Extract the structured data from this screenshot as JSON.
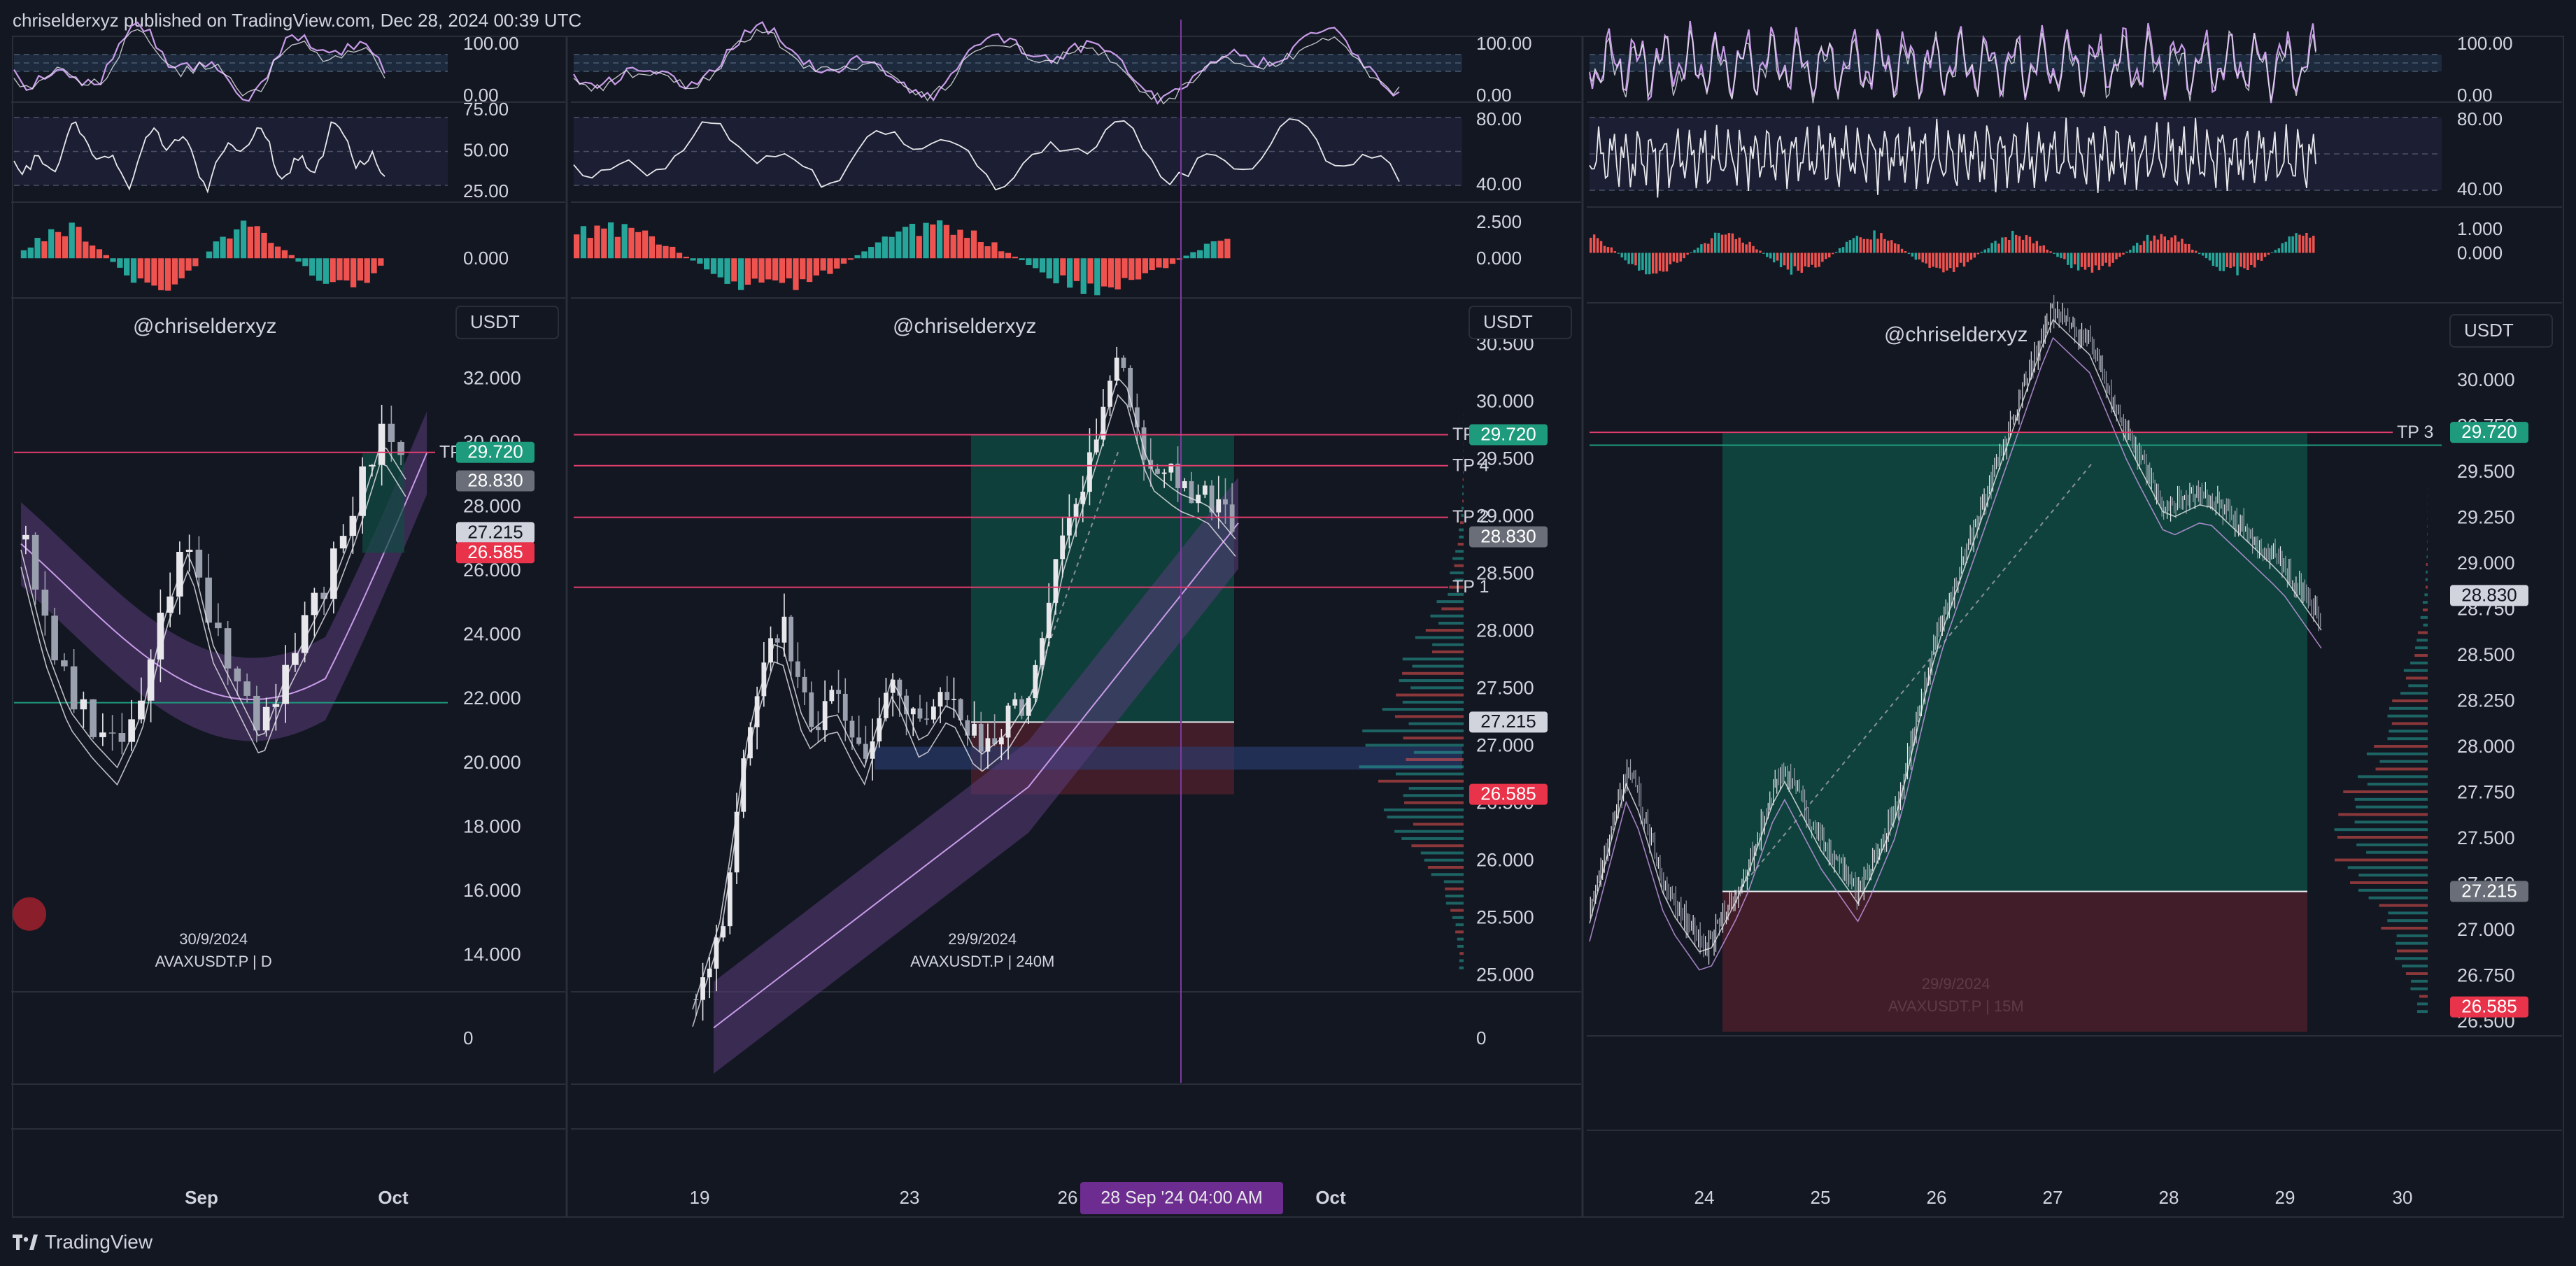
{
  "header": {
    "text": "chriselderxyz published on TradingView.com, Dec 28, 2024 00:39 UTC"
  },
  "footer": {
    "brand": "TradingView"
  },
  "colors": {
    "bg": "#131722",
    "up": "#e8e8ec",
    "down": "#9aa0ad",
    "tp": "#e23d6d",
    "ema": "#c89be8",
    "band": "#5a3d7a",
    "zoneGreen": "#0f4d43",
    "zoneRed": "#4a1f2a",
    "volBlue": "#2b3f77",
    "accent": "#1e9a7c",
    "cross": "#7d3a9e",
    "priceRed": "#e8334a",
    "priceGray": "#6a6e78",
    "pricePurple": "#6d2c8f"
  },
  "chart_data": [
    {
      "type": "candlestick",
      "watermark": "@chriselderxyz",
      "date": "30/9/2024",
      "symbol": "AVAXUSDT.P | D",
      "currency": "USDT",
      "price_ticks": [
        "32.000",
        "30.000",
        "28.000",
        "26.000",
        "24.000",
        "22.000",
        "20.000",
        "18.000",
        "16.000",
        "14.000"
      ],
      "ylim": [
        13,
        34.5
      ],
      "volume_tick": "0",
      "x_labels": [
        "Sep",
        "Oct"
      ],
      "stoch_ticks": [
        "100.00",
        "0.00"
      ],
      "rsi_ticks": [
        "75.00",
        "50.00",
        "25.00"
      ],
      "macd_tick": "0.000",
      "tp_lines": [
        {
          "label": "TP 3",
          "price": 29.72
        }
      ],
      "price_labels": [
        {
          "value": "29.720",
          "kind": "green"
        },
        {
          "value": "28.830",
          "kind": "gray"
        },
        {
          "value": "27.215",
          "kind": "white"
        },
        {
          "value": "26.585",
          "kind": "red"
        }
      ],
      "support_price": 21.9
    },
    {
      "type": "candlestick",
      "watermark": "@chriselderxyz",
      "date": "29/9/2024",
      "symbol": "AVAXUSDT.P | 240M",
      "currency": "USDT",
      "price_ticks": [
        "30.500",
        "30.000",
        "29.500",
        "29.000",
        "28.500",
        "28.000",
        "27.500",
        "27.000",
        "26.500",
        "26.000",
        "25.500",
        "25.000"
      ],
      "ylim": [
        24.9,
        30.9
      ],
      "volume_tick": "0",
      "x_labels": [
        "19",
        "23",
        "26",
        "Oct"
      ],
      "crosshair_label": "28 Sep '24  04:00 AM",
      "stoch_ticks": [
        "100.00",
        "0.00"
      ],
      "rsi_ticks": [
        "80.00",
        "40.00"
      ],
      "macd_ticks": [
        "2.500",
        "0.000"
      ],
      "tp_lines": [
        {
          "label": "TP 3",
          "price": 29.72
        },
        {
          "label": "TP 4",
          "price": 29.45
        },
        {
          "label": "TP 2",
          "price": 29.0
        },
        {
          "label": "TP 1",
          "price": 28.39
        }
      ],
      "price_labels": [
        {
          "value": "29.720",
          "kind": "green"
        },
        {
          "value": "28.830",
          "kind": "gray"
        },
        {
          "value": "27.215",
          "kind": "white"
        },
        {
          "value": "26.585",
          "kind": "red"
        }
      ]
    },
    {
      "type": "candlestick",
      "watermark": "@chriselderxyz",
      "date": "29/9/2024",
      "symbol": "AVAXUSDT.P | 15M",
      "currency": "USDT",
      "price_ticks": [
        "30.000",
        "29.750",
        "29.500",
        "29.250",
        "29.000",
        "28.750",
        "28.500",
        "28.250",
        "28.000",
        "27.750",
        "27.500",
        "27.250",
        "27.000",
        "26.750",
        "26.500"
      ],
      "ylim": [
        26.45,
        30.4
      ],
      "x_labels": [
        "24",
        "25",
        "26",
        "27",
        "28",
        "29",
        "30"
      ],
      "stoch_ticks": [
        "100.00",
        "0.00"
      ],
      "rsi_ticks": [
        "80.00",
        "40.00"
      ],
      "macd_ticks": [
        "1.000",
        "0.000"
      ],
      "tp_lines": [
        {
          "label": "TP 3",
          "price": 29.72
        }
      ],
      "price_labels": [
        {
          "value": "29.720",
          "kind": "green"
        },
        {
          "value": "28.830",
          "kind": "white"
        },
        {
          "value": "27.215",
          "kind": "gray"
        },
        {
          "value": "26.585",
          "kind": "red"
        }
      ]
    }
  ]
}
